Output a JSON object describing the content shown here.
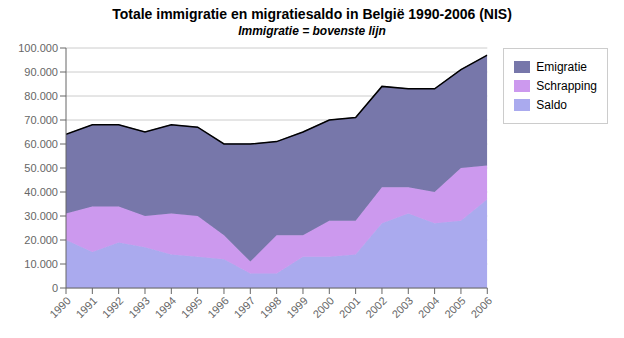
{
  "chart_data": {
    "type": "area",
    "title": "Totale immigratie en migratiesaldo in België 1990-2006 (NIS)",
    "subtitle": "Immigratie = bovenste lijn",
    "x": [
      1990,
      1991,
      1992,
      1993,
      1994,
      1995,
      1996,
      1997,
      1998,
      1999,
      2000,
      2001,
      2002,
      2003,
      2004,
      2005,
      2006
    ],
    "stacked": true,
    "series": [
      {
        "name": "Saldo",
        "type": "area",
        "color": "#aaaaee",
        "values": [
          20000,
          15000,
          19000,
          17000,
          14000,
          13000,
          12000,
          6000,
          6000,
          13000,
          13000,
          14000,
          27000,
          31000,
          27000,
          28000,
          37000
        ]
      },
      {
        "name": "Schrapping",
        "type": "area",
        "color": "#cc99ee",
        "values": [
          11000,
          19000,
          15000,
          13000,
          17000,
          17000,
          10000,
          5000,
          16000,
          9000,
          15000,
          14000,
          15000,
          11000,
          13000,
          22000,
          14000
        ]
      },
      {
        "name": "Emigratie",
        "type": "area",
        "color": "#7777aa",
        "values": [
          33000,
          34000,
          34000,
          35000,
          37000,
          37000,
          38000,
          49000,
          39000,
          43000,
          42000,
          43000,
          42000,
          41000,
          43000,
          41000,
          46000
        ]
      },
      {
        "type": "line",
        "color": "#000000",
        "values": [
          64000,
          68000,
          68000,
          65000,
          68000,
          67000,
          60000,
          60000,
          61000,
          65000,
          70000,
          71000,
          84000,
          83000,
          83000,
          91000,
          97000
        ]
      }
    ],
    "xlim": [
      1990,
      2006
    ],
    "xticks": [
      1990,
      1991,
      1992,
      1993,
      1994,
      1995,
      1996,
      1997,
      1998,
      1999,
      2000,
      2001,
      2002,
      2003,
      2004,
      2005,
      2006
    ],
    "ylim": [
      0,
      100000
    ],
    "yticks": [
      0,
      {
        "value": 10000,
        "label": "10.000"
      },
      {
        "value": 20000,
        "label": "20.000"
      },
      {
        "value": 30000,
        "label": "30.000"
      },
      {
        "value": 40000,
        "label": "40.000"
      },
      {
        "value": 50000,
        "label": "50.000"
      },
      {
        "value": 60000,
        "label": "60.000"
      },
      {
        "value": 70000,
        "label": "70.000"
      },
      {
        "value": 80000,
        "label": "80.000"
      },
      {
        "value": 90000,
        "label": "90.000"
      },
      {
        "value": 100000,
        "label": "100.000"
      }
    ],
    "grid": true,
    "legend": "right"
  }
}
